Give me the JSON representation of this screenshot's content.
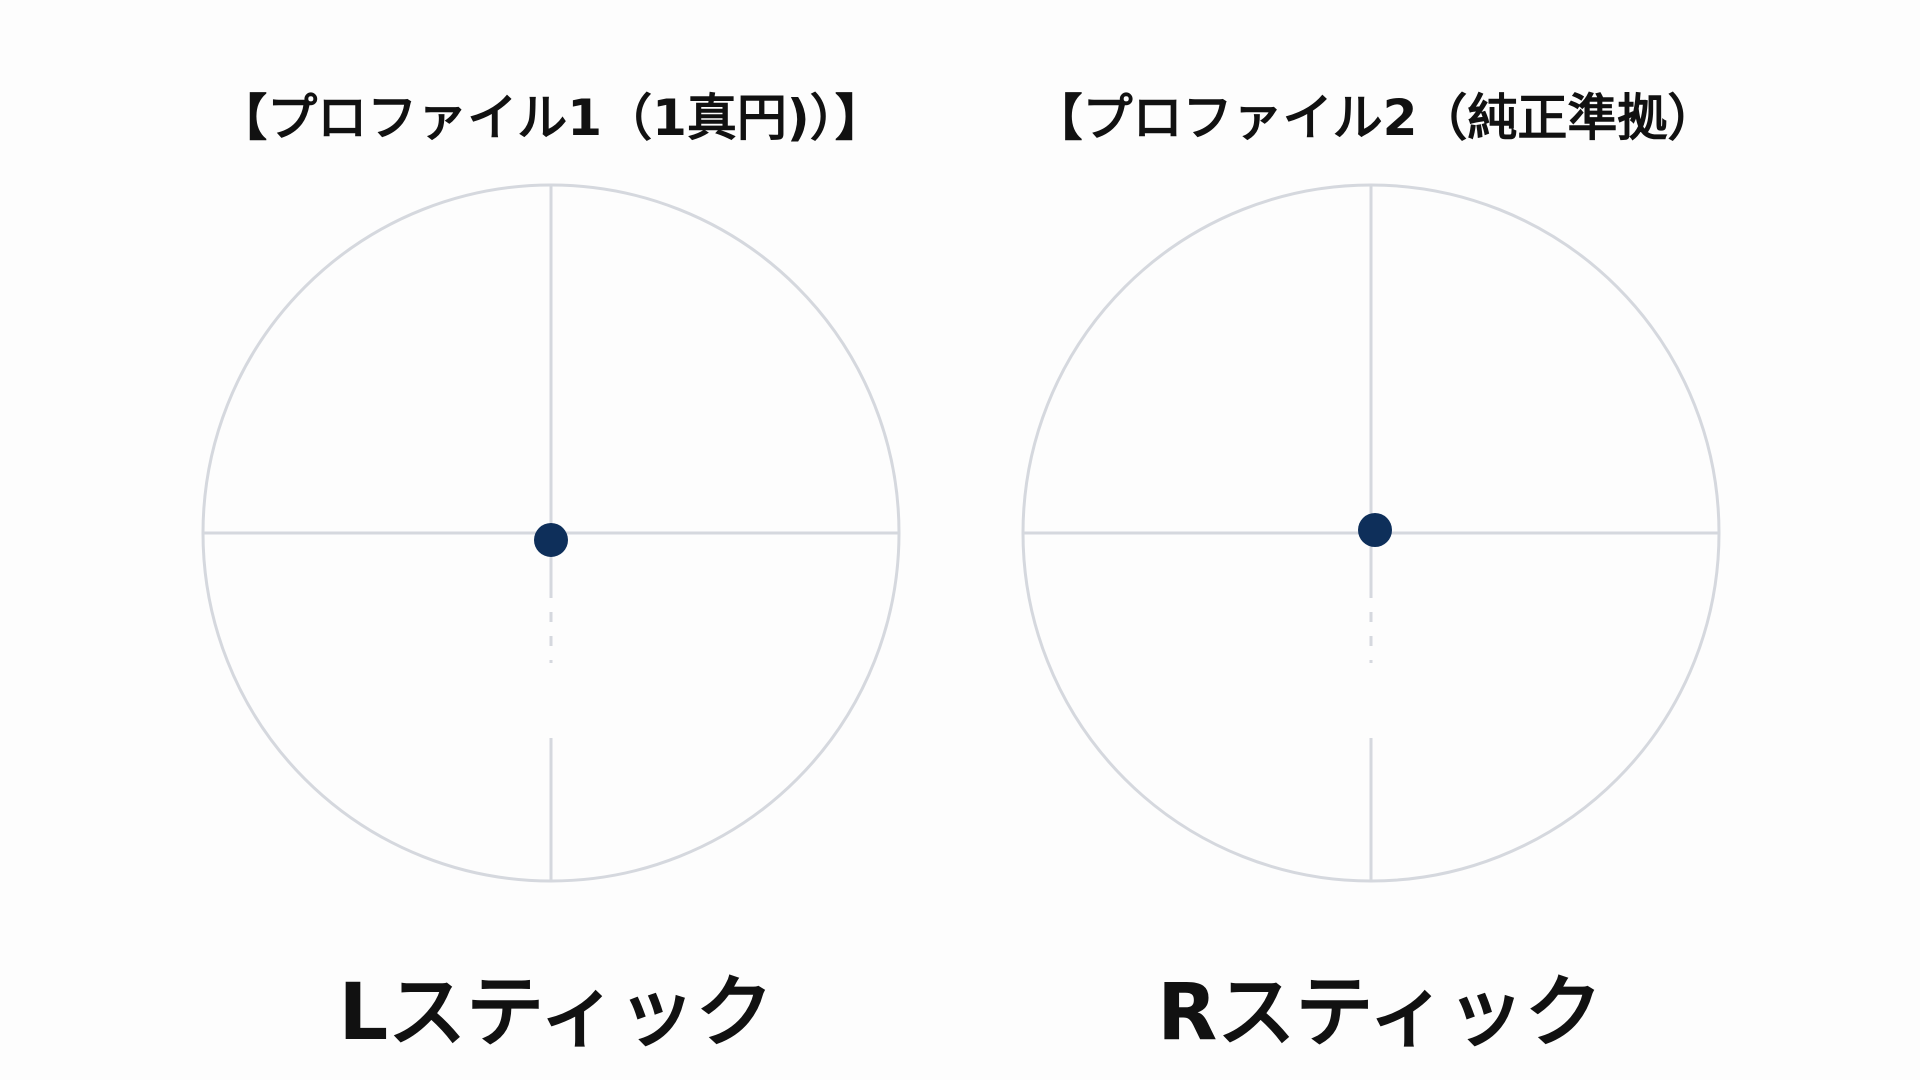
{
  "colors": {
    "guide": "#d5d8de",
    "dot": "#0e2f5a",
    "text": "#111111"
  },
  "panels": [
    {
      "title": "【プロファイル1（1真円)）】",
      "label": "Lスティック",
      "stick_position": {
        "x": 0.0,
        "y": -0.02
      }
    },
    {
      "title": "【プロファイル2（純正準拠）",
      "label": "Rスティック"
    }
  ]
}
